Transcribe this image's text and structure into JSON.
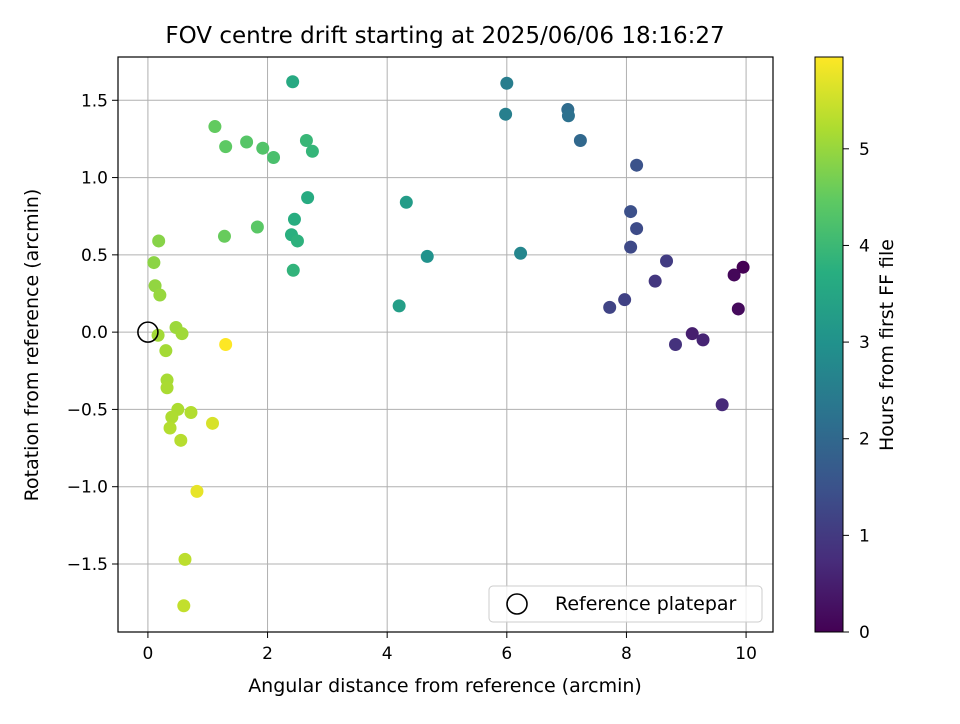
{
  "chart_data": {
    "type": "scatter",
    "title": "FOV centre drift starting at 2025/06/06 18:16:27",
    "xlabel": "Angular distance from reference (arcmin)",
    "ylabel": "Rotation from reference (arcmin)",
    "xlim": [
      -0.5,
      10.45
    ],
    "ylim": [
      -1.94,
      1.78
    ],
    "xticks": [
      0,
      2,
      4,
      6,
      8,
      10
    ],
    "yticks": [
      -1.5,
      -1.0,
      -0.5,
      0.0,
      0.5,
      1.0,
      1.5
    ],
    "xtick_labels": [
      "0",
      "2",
      "4",
      "6",
      "8",
      "10"
    ],
    "ytick_labels": [
      "−1.5",
      "−1.0",
      "−0.5",
      "0.0",
      "0.5",
      "1.0",
      "1.5"
    ],
    "grid": true,
    "colormap": "viridis",
    "colorbar": {
      "label": "Hours from first FF file",
      "range": [
        0,
        5.95
      ],
      "ticks": [
        0,
        1,
        2,
        3,
        4,
        5
      ],
      "tick_labels": [
        "0",
        "1",
        "2",
        "3",
        "4",
        "5"
      ]
    },
    "legend": {
      "location": "lower right",
      "entries": [
        {
          "label": "Reference platepar",
          "marker": "open-circle",
          "color": "#000000"
        }
      ]
    },
    "reference_point": {
      "x": 0.0,
      "y": 0.0
    },
    "points": [
      {
        "x": 9.95,
        "y": 0.42,
        "hours": 0.0
      },
      {
        "x": 9.8,
        "y": 0.37,
        "hours": 0.1
      },
      {
        "x": 9.87,
        "y": 0.15,
        "hours": 0.15
      },
      {
        "x": 9.1,
        "y": -0.01,
        "hours": 0.5
      },
      {
        "x": 9.28,
        "y": -0.05,
        "hours": 0.6
      },
      {
        "x": 9.6,
        "y": -0.47,
        "hours": 0.7
      },
      {
        "x": 8.82,
        "y": -0.08,
        "hours": 0.85
      },
      {
        "x": 8.48,
        "y": 0.33,
        "hours": 0.95
      },
      {
        "x": 8.67,
        "y": 0.46,
        "hours": 1.05
      },
      {
        "x": 7.97,
        "y": 0.21,
        "hours": 1.15
      },
      {
        "x": 7.72,
        "y": 0.16,
        "hours": 1.2
      },
      {
        "x": 8.07,
        "y": 0.55,
        "hours": 1.3
      },
      {
        "x": 8.17,
        "y": 0.67,
        "hours": 1.35
      },
      {
        "x": 8.07,
        "y": 0.78,
        "hours": 1.45
      },
      {
        "x": 8.17,
        "y": 1.08,
        "hours": 1.5
      },
      {
        "x": 7.23,
        "y": 1.24,
        "hours": 2.0
      },
      {
        "x": 7.02,
        "y": 1.44,
        "hours": 2.1
      },
      {
        "x": 7.03,
        "y": 1.4,
        "hours": 2.2
      },
      {
        "x": 6.0,
        "y": 1.61,
        "hours": 2.5
      },
      {
        "x": 5.98,
        "y": 1.41,
        "hours": 2.55
      },
      {
        "x": 6.23,
        "y": 0.51,
        "hours": 2.7
      },
      {
        "x": 4.67,
        "y": 0.49,
        "hours": 3.0
      },
      {
        "x": 4.32,
        "y": 0.84,
        "hours": 3.25
      },
      {
        "x": 4.2,
        "y": 0.17,
        "hours": 3.3
      },
      {
        "x": 2.42,
        "y": 1.62,
        "hours": 3.6
      },
      {
        "x": 2.67,
        "y": 0.87,
        "hours": 3.65
      },
      {
        "x": 2.45,
        "y": 0.73,
        "hours": 3.7
      },
      {
        "x": 2.4,
        "y": 0.63,
        "hours": 3.75
      },
      {
        "x": 2.5,
        "y": 0.59,
        "hours": 3.8
      },
      {
        "x": 2.43,
        "y": 0.4,
        "hours": 3.85
      },
      {
        "x": 2.75,
        "y": 1.17,
        "hours": 3.9
      },
      {
        "x": 2.65,
        "y": 1.24,
        "hours": 3.95
      },
      {
        "x": 2.1,
        "y": 1.13,
        "hours": 4.2
      },
      {
        "x": 1.92,
        "y": 1.19,
        "hours": 4.3
      },
      {
        "x": 1.65,
        "y": 1.23,
        "hours": 4.35
      },
      {
        "x": 1.3,
        "y": 1.2,
        "hours": 4.45
      },
      {
        "x": 1.12,
        "y": 1.33,
        "hours": 4.5
      },
      {
        "x": 1.83,
        "y": 0.68,
        "hours": 4.4
      },
      {
        "x": 1.28,
        "y": 0.62,
        "hours": 4.55
      },
      {
        "x": 0.18,
        "y": 0.59,
        "hours": 4.85
      },
      {
        "x": 0.1,
        "y": 0.45,
        "hours": 4.9
      },
      {
        "x": 0.12,
        "y": 0.3,
        "hours": 4.95
      },
      {
        "x": 0.2,
        "y": 0.24,
        "hours": 5.0
      },
      {
        "x": 0.47,
        "y": 0.03,
        "hours": 5.05
      },
      {
        "x": 0.57,
        "y": -0.01,
        "hours": 5.08
      },
      {
        "x": 0.17,
        "y": -0.02,
        "hours": 5.1
      },
      {
        "x": 0.3,
        "y": -0.12,
        "hours": 5.12
      },
      {
        "x": 0.32,
        "y": -0.31,
        "hours": 5.15
      },
      {
        "x": 0.32,
        "y": -0.36,
        "hours": 5.18
      },
      {
        "x": 0.5,
        "y": -0.5,
        "hours": 5.2
      },
      {
        "x": 0.72,
        "y": -0.52,
        "hours": 5.25
      },
      {
        "x": 0.4,
        "y": -0.55,
        "hours": 5.22
      },
      {
        "x": 0.37,
        "y": -0.62,
        "hours": 5.26
      },
      {
        "x": 0.55,
        "y": -0.7,
        "hours": 5.3
      },
      {
        "x": 0.62,
        "y": -1.47,
        "hours": 5.35
      },
      {
        "x": 0.6,
        "y": -1.77,
        "hours": 5.4
      },
      {
        "x": 1.08,
        "y": -0.59,
        "hours": 5.6
      },
      {
        "x": 0.82,
        "y": -1.03,
        "hours": 5.75
      },
      {
        "x": 1.3,
        "y": -0.08,
        "hours": 5.95
      }
    ]
  }
}
